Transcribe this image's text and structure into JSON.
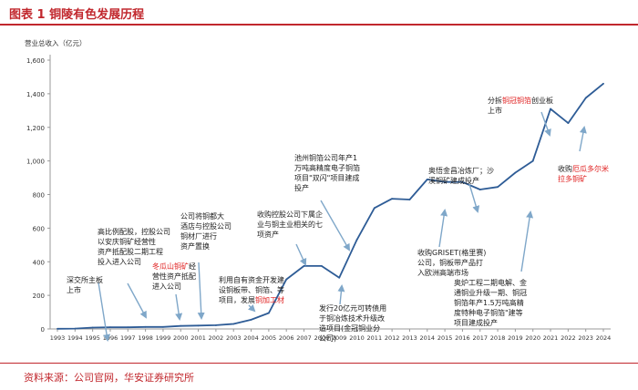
{
  "header": {
    "title": "图表 1  铜陵有色发展历程"
  },
  "footer": {
    "source": "资料来源：公司官网，华安证券研究所"
  },
  "colors": {
    "line": "#2e5c96",
    "accent": "#c1272d",
    "arrow": "#7fa7c9",
    "text": "#222222",
    "highlight": "#e02020"
  },
  "chart_data": {
    "type": "line",
    "title": "",
    "ylabel": "营业总收入（亿元）",
    "xlabel": "",
    "ylim": [
      0,
      1600
    ],
    "yticks": [
      "0",
      "200",
      "400",
      "600",
      "800",
      "1,000",
      "1,200",
      "1,400",
      "1,600"
    ],
    "grid": false,
    "x": [
      "1993",
      "1994",
      "1995",
      "1996",
      "1997",
      "1998",
      "1999",
      "2000",
      "2001",
      "2002",
      "2003",
      "2004",
      "2005",
      "2006",
      "2007",
      "2008",
      "2009",
      "2010",
      "2011",
      "2012",
      "2013",
      "2014",
      "2015",
      "2016",
      "2017",
      "2018",
      "2019",
      "2020",
      "2021",
      "2022",
      "2023",
      "2024"
    ],
    "values": [
      1,
      2,
      8,
      10,
      10,
      12,
      12,
      18,
      20,
      22,
      30,
      55,
      95,
      295,
      375,
      375,
      305,
      530,
      720,
      775,
      770,
      890,
      875,
      875,
      830,
      845,
      930,
      1000,
      1310,
      1225,
      1375,
      1460
    ],
    "annotations": [
      {
        "id": "a1996",
        "lines": [
          "深交所主板",
          "上市"
        ],
        "parts": []
      },
      {
        "id": "a1998",
        "lines": [
          "高比例配股，控股公司",
          "以安庆铜矿经营性",
          "资产抵配股二期工程",
          "投入进入公司"
        ],
        "parts": []
      },
      {
        "id": "a2000",
        "lines": [
          "",
          "营性资产抵配",
          "进入公司"
        ],
        "parts": [
          {
            "text": "冬瓜山铜矿",
            "red": true
          },
          {
            "text": "经",
            "red": false
          }
        ]
      },
      {
        "id": "a2001",
        "lines": [
          "公司将铜都大",
          "酒店与控股公司",
          "铜材厂进行",
          "资产置换"
        ],
        "parts": []
      },
      {
        "id": "a2004",
        "lines": [
          "利用自有资金开发建",
          "设铜板带、铜箔、等",
          "项目，发展"
        ],
        "parts": [
          {
            "text": "铜加工材",
            "red": true
          }
        ]
      },
      {
        "id": "a2007",
        "lines": [
          "收购控股公司下属企",
          "业与铜主业相关的七",
          "项资产"
        ],
        "parts": []
      },
      {
        "id": "a2009",
        "lines": [
          "发行20亿元可转债用",
          "于铜冶炼技术升级改",
          "造项目(金冠铜业分",
          "公司)"
        ],
        "parts": []
      },
      {
        "id": "a2010",
        "lines": [
          "池州铜箔公司年产1",
          "万吨高精度电子铜箔",
          "项目\"双闪\"项目建成",
          "投产"
        ],
        "parts": []
      },
      {
        "id": "a2015",
        "lines": [
          "收购GRISET(格里赛)",
          "公司，铜板带产品打",
          "入欧洲高端市场"
        ],
        "parts": []
      },
      {
        "id": "a2017",
        "lines": [
          "奥悟金昌冶炼厂；沙",
          "溪铜矿建成投产"
        ],
        "parts": []
      },
      {
        "id": "a2020",
        "lines": [
          "奥炉工程二期电解、金",
          "通铜业升级一期、铜冠",
          "铜箔年产1.5万吨高精",
          "度特种电子铜箔\"建等",
          "项目建成投产"
        ],
        "parts": []
      },
      {
        "id": "a2022",
        "lines": [
          "分拆",
          "创业板",
          "上市"
        ],
        "parts": [
          {
            "text": "铜冠铜箔",
            "red": true
          }
        ]
      },
      {
        "id": "a2023",
        "lines": [
          "收购",
          "拉多铜矿"
        ],
        "parts": [
          {
            "text": "厄瓜多尔米",
            "red": true
          }
        ]
      }
    ]
  }
}
